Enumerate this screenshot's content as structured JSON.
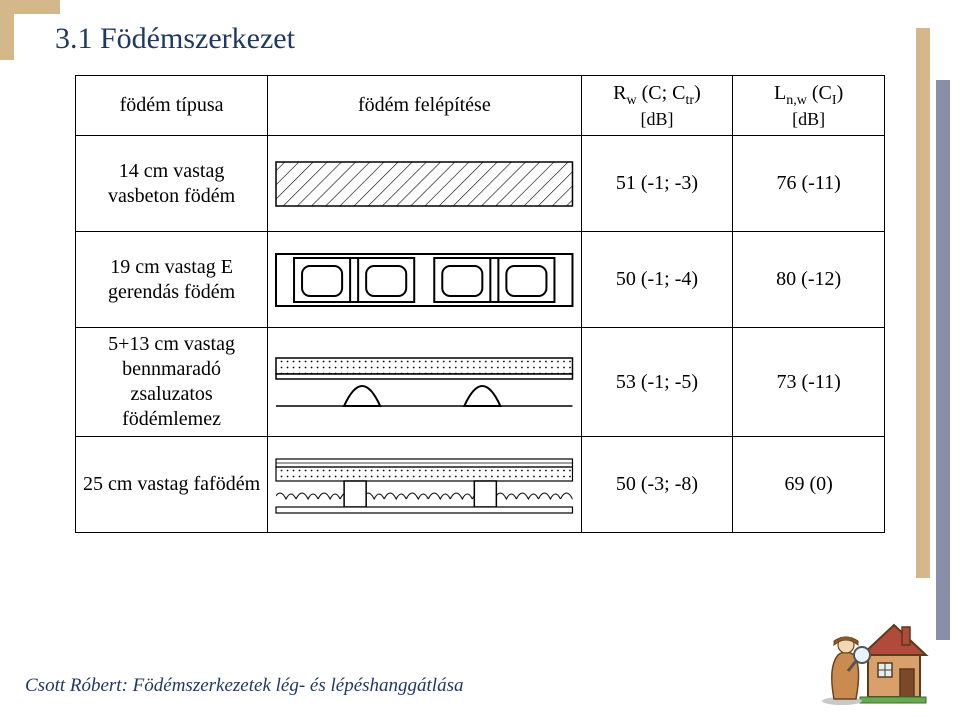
{
  "colors": {
    "accent": "#203864",
    "decor_tan": "#d4b88c",
    "decor_blue": "#8a8fa8",
    "border": "#000000",
    "bg": "#ffffff"
  },
  "title": "3.1 Födémszerkezet",
  "header": {
    "col_type": "födém típusa",
    "col_build": "födém felépítése",
    "col_rw_html": "R<sub>w</sub> (C; C<sub>tr</sub>)",
    "col_rw_unit": "[dB]",
    "col_ln_html": "L<sub>n,w</sub> (C<sub>I</sub>)",
    "col_ln_unit": "[dB]"
  },
  "rows": [
    {
      "label": "14 cm vastag vasbeton födém",
      "rw": "51 (-1; -3)",
      "ln": "76 (-11)"
    },
    {
      "label": "19 cm vastag E gerendás födém",
      "rw": "50 (-1; -4)",
      "ln": "80 (-12)"
    },
    {
      "label": "5+13 cm vastag bennmaradó zsaluzatos födémlemez",
      "rw": "53 (-1; -5)",
      "ln": "73 (-11)"
    },
    {
      "label": "25 cm vastag fafödém",
      "rw": "50 (-3; -8)",
      "ln": "69 (0)"
    }
  ],
  "footer": "Csott Róbert: Födémszerkezetek lég- és léshanggátlása",
  "footer_actual": "Csott Róbert: Födémszerkezetek lég- és lépéshanggátlása"
}
